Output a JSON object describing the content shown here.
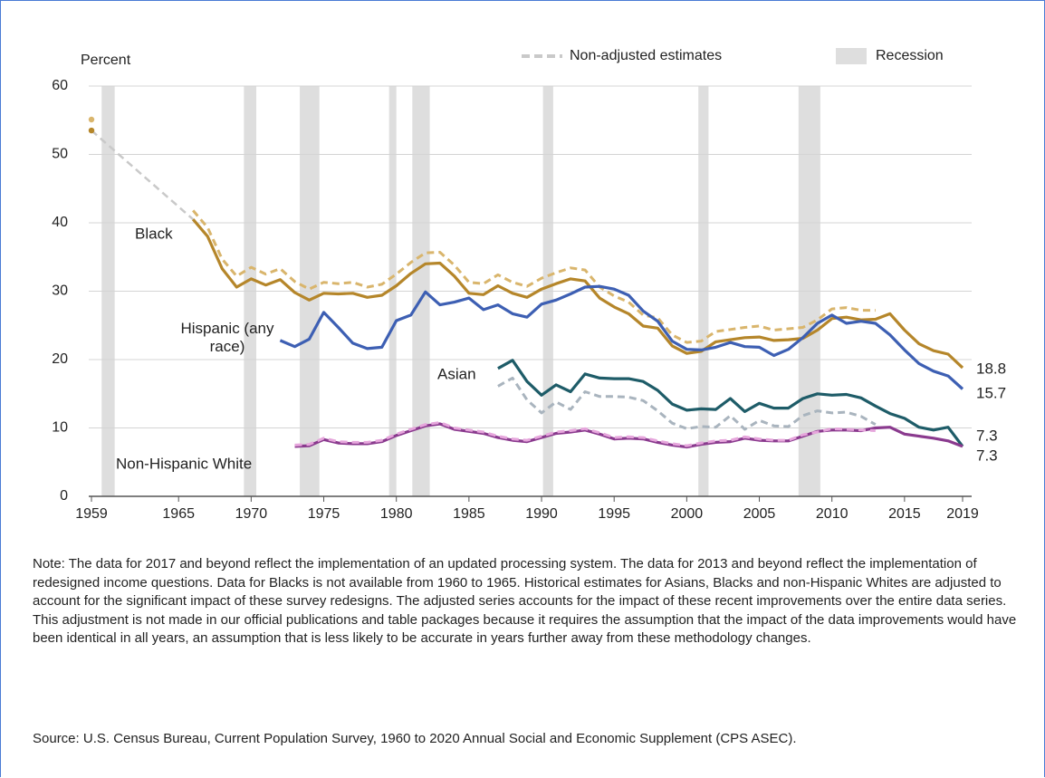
{
  "chart_data": {
    "type": "line",
    "y_label": "Percent",
    "xlim": [
      1959,
      2019
    ],
    "ylim": [
      0,
      60
    ],
    "yticks": [
      0,
      10,
      20,
      30,
      40,
      50,
      60
    ],
    "xticks": [
      1959,
      1965,
      1970,
      1975,
      1980,
      1985,
      1990,
      1995,
      2000,
      2005,
      2010,
      2015,
      2019
    ],
    "grid": true,
    "legend": [
      {
        "label": "Non-adjusted estimates",
        "color": "#c9c9c9",
        "style": "dashed"
      },
      {
        "label": "Recession",
        "color": "#dedede",
        "style": "band"
      }
    ],
    "recessions": [
      [
        1959.7,
        1960.6
      ],
      [
        1969.5,
        1970.35
      ],
      [
        1973.35,
        1974.7
      ],
      [
        1979.5,
        1980.0
      ],
      [
        1981.1,
        1982.3
      ],
      [
        1990.1,
        1990.8
      ],
      [
        2000.8,
        2001.5
      ],
      [
        2007.7,
        2009.2
      ]
    ],
    "x": [
      1959,
      1960,
      1961,
      1962,
      1963,
      1964,
      1965,
      1966,
      1967,
      1968,
      1969,
      1970,
      1971,
      1972,
      1973,
      1974,
      1975,
      1976,
      1977,
      1978,
      1979,
      1980,
      1981,
      1982,
      1983,
      1984,
      1985,
      1986,
      1987,
      1988,
      1989,
      1990,
      1991,
      1992,
      1993,
      1994,
      1995,
      1996,
      1997,
      1998,
      1999,
      2000,
      2001,
      2002,
      2003,
      2004,
      2005,
      2006,
      2007,
      2008,
      2009,
      2010,
      2011,
      2012,
      2013,
      2014,
      2015,
      2016,
      2017,
      2018,
      2019
    ],
    "series": [
      {
        "color": "#d9b56c",
        "style": "dashed",
        "values": [
          55.1,
          null,
          null,
          null,
          null,
          null,
          null,
          41.8,
          39.3,
          34.7,
          32.2,
          33.5,
          32.5,
          33.3,
          31.4,
          30.3,
          31.3,
          31.1,
          31.3,
          30.6,
          31.0,
          32.5,
          34.2,
          35.6,
          35.7,
          33.8,
          31.3,
          31.1,
          32.4,
          31.3,
          30.7,
          31.9,
          32.7,
          33.4,
          33.1,
          30.6,
          29.3,
          28.4,
          26.5,
          26.1,
          23.6,
          22.5,
          22.7,
          24.1,
          24.4,
          24.7,
          24.9,
          24.3,
          24.5,
          24.7,
          25.8,
          27.4,
          27.6,
          27.2,
          27.2,
          null,
          null,
          null,
          null,
          null,
          null
        ]
      },
      {
        "name": "Black",
        "color": "#b5862a",
        "style": "solid",
        "bridge_color": "#c9c9c9",
        "values": [
          53.5,
          null,
          null,
          null,
          null,
          null,
          null,
          40.5,
          38,
          33.3,
          30.6,
          31.8,
          30.9,
          31.7,
          29.8,
          28.7,
          29.7,
          29.6,
          29.7,
          29.1,
          29.4,
          30.8,
          32.6,
          34.0,
          34.1,
          32.2,
          29.7,
          29.5,
          30.8,
          29.7,
          29.1,
          30.3,
          31.1,
          31.8,
          31.5,
          29.0,
          27.7,
          26.7,
          24.9,
          24.6,
          22.0,
          20.9,
          21.2,
          22.6,
          22.9,
          23.2,
          23.3,
          22.8,
          22.9,
          23.1,
          24.3,
          26.0,
          26.2,
          25.8,
          25.9,
          26.7,
          24.3,
          22.3,
          21.3,
          20.8,
          18.8
        ]
      },
      {
        "color": "#a9b4be",
        "style": "dashed",
        "values": [
          null,
          null,
          null,
          null,
          null,
          null,
          null,
          null,
          null,
          null,
          null,
          null,
          null,
          null,
          null,
          null,
          null,
          null,
          null,
          null,
          null,
          null,
          null,
          null,
          null,
          null,
          null,
          null,
          16.1,
          17.3,
          14.1,
          12.2,
          13.8,
          12.7,
          15.3,
          14.6,
          14.6,
          14.5,
          14.0,
          12.5,
          10.7,
          9.9,
          10.2,
          10.1,
          11.8,
          9.8,
          11.1,
          10.3,
          10.2,
          11.8,
          12.5,
          12.2,
          12.3,
          11.7,
          10.5,
          null,
          null,
          null,
          null,
          null,
          null
        ]
      },
      {
        "name": "Asian",
        "color": "#1e5c68",
        "style": "solid",
        "values": [
          null,
          null,
          null,
          null,
          null,
          null,
          null,
          null,
          null,
          null,
          null,
          null,
          null,
          null,
          null,
          null,
          null,
          null,
          null,
          null,
          null,
          null,
          null,
          null,
          null,
          null,
          null,
          null,
          18.7,
          19.9,
          16.8,
          14.8,
          16.3,
          15.3,
          17.9,
          17.3,
          17.2,
          17.2,
          16.8,
          15.5,
          13.5,
          12.6,
          12.8,
          12.7,
          14.3,
          12.4,
          13.6,
          12.9,
          12.9,
          14.3,
          15.0,
          14.8,
          14.9,
          14.4,
          13.2,
          12.1,
          11.4,
          10.1,
          9.7,
          10.1,
          7.3
        ]
      },
      {
        "name": "Hispanic (any race)",
        "color": "#3d5fb3",
        "style": "solid",
        "values": [
          null,
          null,
          null,
          null,
          null,
          null,
          null,
          null,
          null,
          null,
          null,
          null,
          null,
          22.8,
          21.9,
          23.0,
          26.9,
          24.7,
          22.4,
          21.6,
          21.8,
          25.7,
          26.5,
          29.9,
          28.0,
          28.4,
          29.0,
          27.3,
          28.0,
          26.7,
          26.2,
          28.1,
          28.7,
          29.6,
          30.6,
          30.7,
          30.3,
          29.4,
          27.1,
          25.6,
          22.7,
          21.5,
          21.4,
          21.8,
          22.5,
          21.9,
          21.8,
          20.6,
          21.5,
          23.2,
          25.3,
          26.5,
          25.3,
          25.6,
          25.3,
          23.6,
          21.4,
          19.4,
          18.3,
          17.6,
          15.7
        ]
      },
      {
        "name": "Non-Hispanic White",
        "color": "#8a3a8e",
        "style": "solid",
        "values": [
          null,
          null,
          null,
          null,
          null,
          null,
          null,
          null,
          null,
          null,
          null,
          null,
          null,
          null,
          7.3,
          7.4,
          8.3,
          7.8,
          7.7,
          7.7,
          8.0,
          8.9,
          9.6,
          10.3,
          10.6,
          9.8,
          9.5,
          9.2,
          8.6,
          8.2,
          8.0,
          8.6,
          9.2,
          9.4,
          9.7,
          9.1,
          8.4,
          8.5,
          8.4,
          7.9,
          7.5,
          7.2,
          7.6,
          7.9,
          8.0,
          8.5,
          8.2,
          8.1,
          8.1,
          8.8,
          9.5,
          9.7,
          9.7,
          9.6,
          10.0,
          10.1,
          9.1,
          8.8,
          8.5,
          8.1,
          7.3
        ]
      },
      {
        "color": "#e6a6dc",
        "style": "dashed",
        "values": [
          null,
          null,
          null,
          null,
          null,
          null,
          null,
          null,
          null,
          null,
          null,
          null,
          null,
          null,
          7.5,
          7.6,
          8.5,
          8.0,
          7.9,
          7.9,
          8.2,
          9.1,
          9.8,
          10.5,
          10.8,
          10.0,
          9.7,
          9.4,
          8.8,
          8.4,
          8.2,
          8.8,
          9.4,
          9.6,
          9.9,
          9.3,
          8.6,
          8.7,
          8.6,
          8.1,
          7.7,
          7.4,
          7.8,
          8.1,
          8.2,
          8.7,
          8.4,
          8.2,
          8.2,
          9.0,
          9.4,
          9.9,
          9.8,
          9.7,
          9.6,
          null,
          null,
          null,
          null,
          null,
          null
        ]
      }
    ],
    "note": "Note: The data for 2017 and beyond reflect the implementation of an updated processing system. The data for 2013 and beyond reflect the implementation of redesigned income questions. Data for Blacks is not available from 1960 to 1965. Historical estimates for Asians, Blacks and non-Hispanic Whites are adjusted to account for the significant impact of these survey redesigns. The adjusted series accounts for the impact of these recent improvements over the entire data series. This adjustment is not made in our official publications and table packages because it requires the assumption that the impact of the data improvements would have been identical in all years, an assumption that is less likely to be accurate in years further away from these methodology changes.",
    "source": "Source: U.S. Census Bureau, Current Population Survey, 1960 to 2020 Annual Social and Economic Supplement (CPS ASEC)."
  }
}
